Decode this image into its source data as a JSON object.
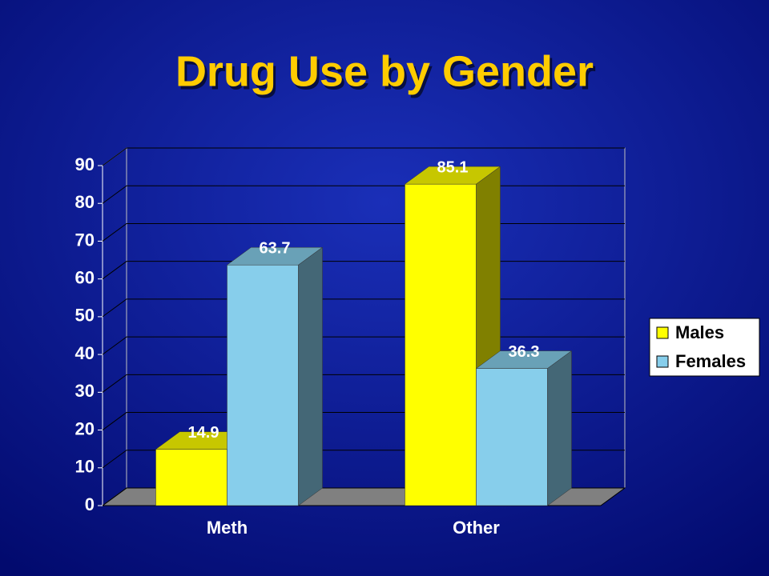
{
  "chart_data": {
    "type": "bar3d",
    "title": "Drug Use by Gender",
    "categories": [
      "Meth",
      "Other"
    ],
    "series": [
      {
        "name": "Males",
        "color": "#ffff00",
        "values": [
          14.9,
          85.1
        ]
      },
      {
        "name": "Females",
        "color": "#87ceeb",
        "values": [
          63.7,
          36.3
        ]
      }
    ],
    "ylim": [
      0,
      90
    ],
    "yticks": [
      0,
      10,
      20,
      30,
      40,
      50,
      60,
      70,
      80,
      90
    ],
    "grid": true,
    "legend": "right"
  }
}
